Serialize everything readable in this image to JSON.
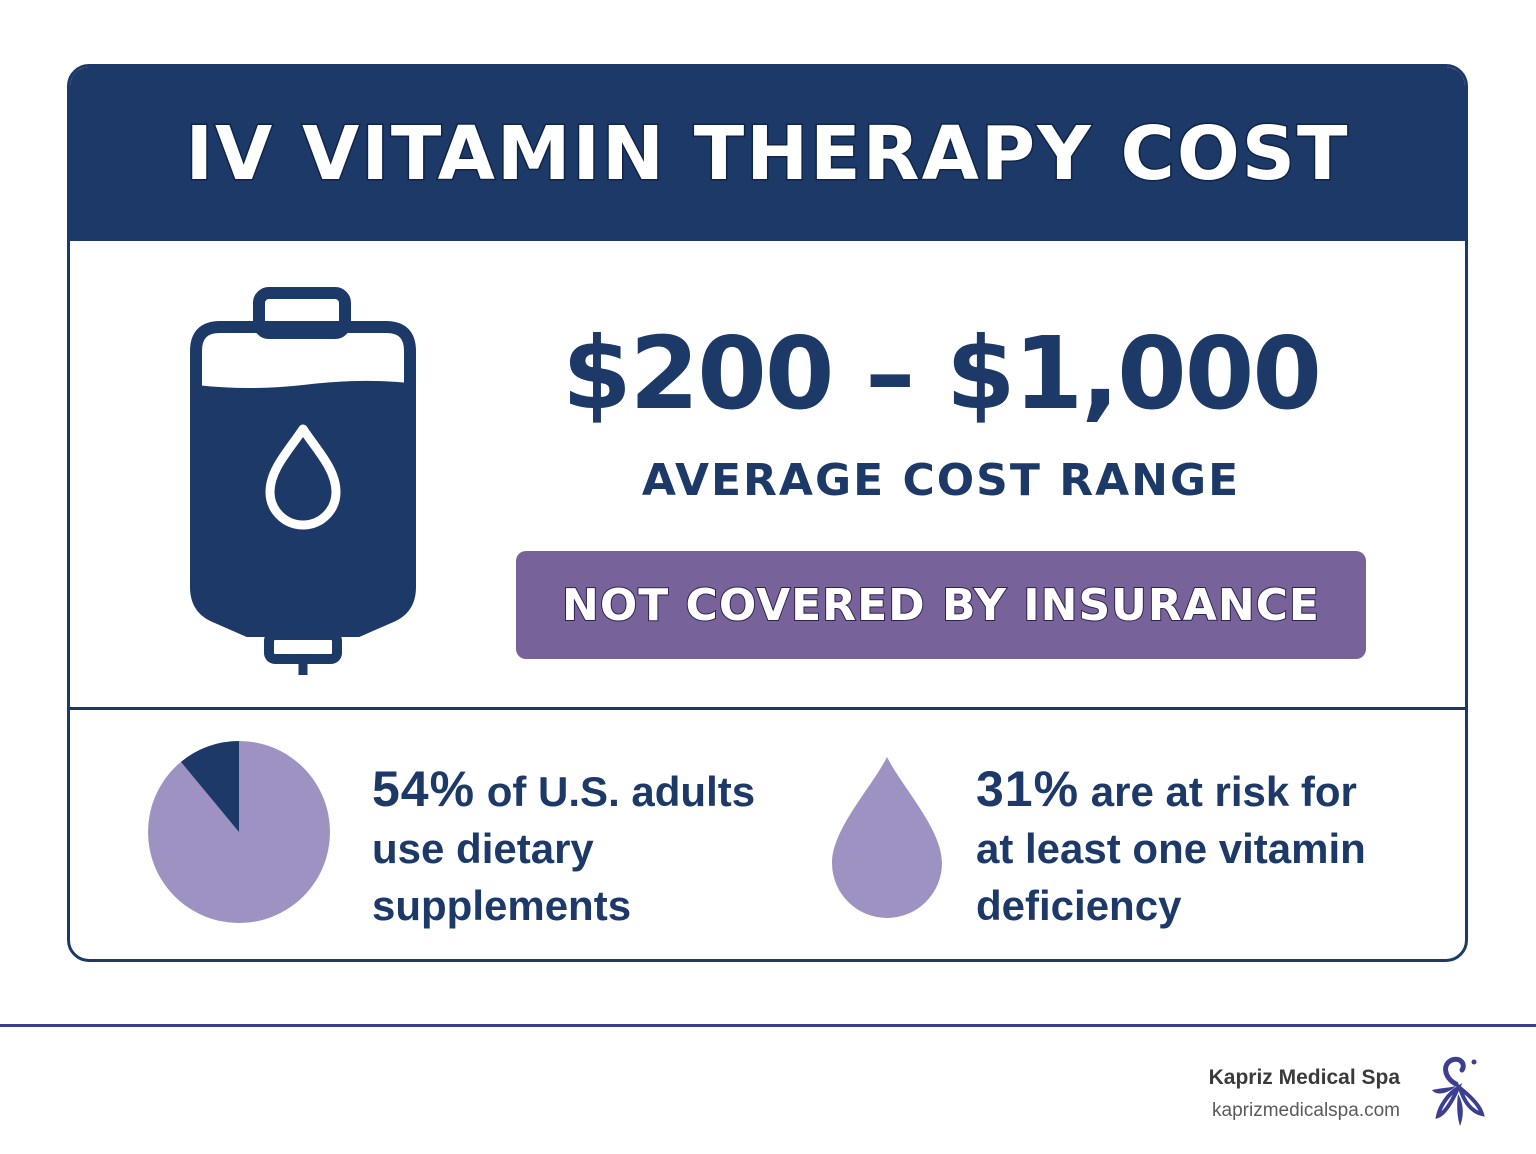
{
  "header": {
    "title": "IV VITAMIN THERAPY COST"
  },
  "cost": {
    "range": "$200 – $1,000",
    "caption": "AVERAGE COST RANGE",
    "insurance_note": "NOT COVERED BY INSURANCE"
  },
  "stats": [
    {
      "value": "54%",
      "text_line1": "of U.S. adults",
      "text_line2": "use dietary",
      "text_line3": "supplements"
    },
    {
      "value": "31%",
      "text_line1": "are at risk for",
      "text_line2": "at least one vitamin",
      "text_line3": "deficiency"
    }
  ],
  "pie_fraction_dark": 0.11,
  "brand": {
    "name": "Kapriz Medical Spa",
    "url": "kaprizmedicalspa.com"
  },
  "colors": {
    "navy": "#1c3968",
    "purple": "#776399",
    "lavender": "#9e92c2"
  },
  "icons": {
    "bag": "iv-bag-icon",
    "drop": "drop-icon",
    "logo": "kapriz-logo-icon"
  }
}
